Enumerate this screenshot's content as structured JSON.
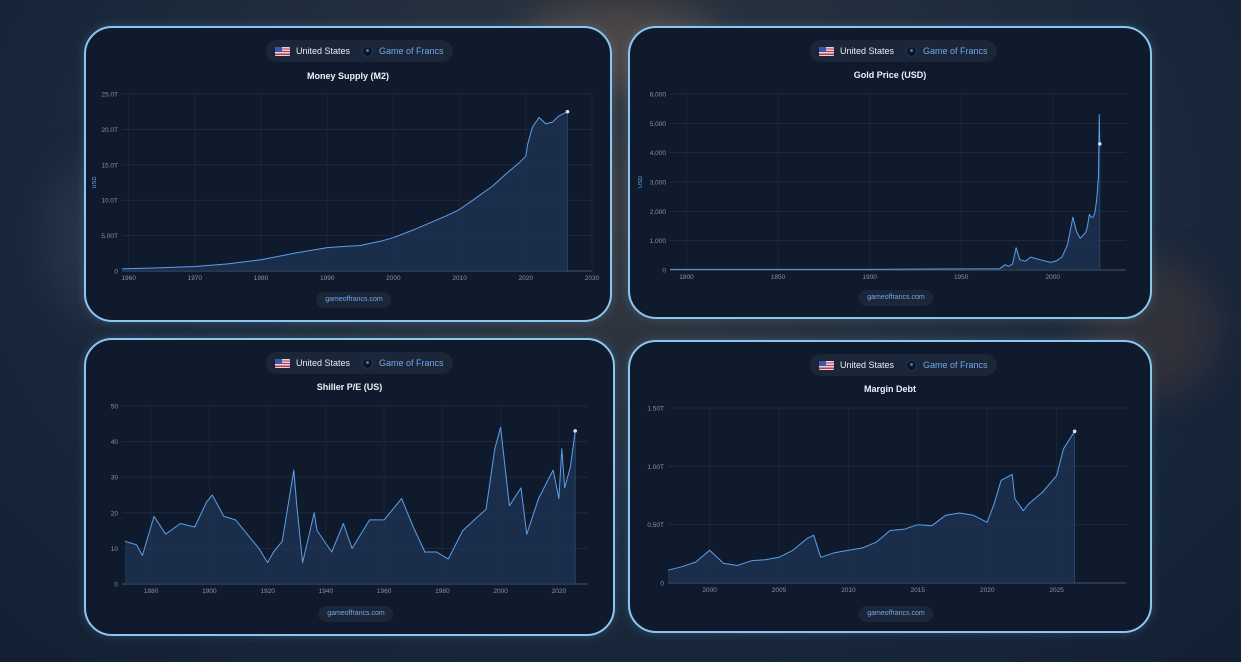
{
  "header": {
    "country_label": "United States",
    "brand_label": "Game of Francs",
    "flag_icon": "us-flag-icon",
    "brand_icon": "game-of-francs-logo-icon"
  },
  "footer_text": "gameoffrancs.com",
  "colors": {
    "accent": "#6fa9ee",
    "card_border": "#8cc6ee",
    "card_bg": "#101a2d",
    "line": "#5b9fe8",
    "area": "#1e3556"
  },
  "chart_data": [
    {
      "type": "area",
      "title": "Money Supply (M2)",
      "ylabel": "USD",
      "xlim": [
        1959,
        2030
      ],
      "ylim": [
        0,
        25
      ],
      "x_ticks": [
        1960,
        1970,
        1980,
        1990,
        2000,
        2010,
        2020,
        2030
      ],
      "y_ticks": [
        0,
        5,
        10,
        15,
        20,
        25
      ],
      "y_tick_labels": [
        "0",
        "5.00T",
        "10.0T",
        "15.0T",
        "20.0T",
        "25.0T"
      ],
      "series": [
        {
          "x": [
            1959,
            1965,
            1970,
            1975,
            1980,
            1985,
            1990,
            1993,
            1995,
            1998,
            2000,
            2003,
            2005,
            2008,
            2010,
            2012,
            2015,
            2017,
            2019,
            2020,
            2020.3,
            2021,
            2022,
            2023,
            2024,
            2025,
            2026.3
          ],
          "values": [
            0.29,
            0.46,
            0.63,
            1.0,
            1.6,
            2.5,
            3.3,
            3.5,
            3.6,
            4.2,
            4.7,
            5.8,
            6.6,
            7.8,
            8.7,
            10.0,
            12.0,
            13.7,
            15.3,
            16.2,
            18.0,
            20.3,
            21.7,
            20.8,
            21.0,
            21.9,
            22.5
          ]
        }
      ]
    },
    {
      "type": "line",
      "title": "Gold Price (USD)",
      "ylabel": "USD",
      "xlim": [
        1791,
        2040
      ],
      "ylim": [
        0,
        6000
      ],
      "x_ticks": [
        1800,
        1850,
        1900,
        1950,
        2000
      ],
      "y_ticks": [
        0,
        1000,
        2000,
        3000,
        4000,
        5000,
        6000
      ],
      "y_tick_labels": [
        "0",
        "1,000",
        "2,000",
        "3,000",
        "4,000",
        "5,000",
        "6,000"
      ],
      "series": [
        {
          "x": [
            1791,
            1834,
            1900,
            1934,
            1968,
            1971,
            1974,
            1976,
            1978,
            1980,
            1982,
            1985,
            1988,
            1993,
            1999,
            2002,
            2005,
            2008,
            2011,
            2013,
            2015,
            2018,
            2019,
            2020,
            2021,
            2022,
            2023,
            2024,
            2025,
            2025.4,
            2025.7
          ],
          "values": [
            19,
            21,
            21,
            35,
            39,
            41,
            180,
            125,
            200,
            760,
            350,
            300,
            440,
            350,
            260,
            310,
            440,
            850,
            1800,
            1300,
            1080,
            1280,
            1500,
            1900,
            1800,
            1800,
            1950,
            2400,
            3200,
            5300,
            4300
          ]
        }
      ]
    },
    {
      "type": "line",
      "title": "Shiller P/E (US)",
      "xlim": [
        1870,
        2030
      ],
      "ylim": [
        0,
        50
      ],
      "x_ticks": [
        1880,
        1900,
        1920,
        1940,
        1960,
        1980,
        2000,
        2020
      ],
      "y_ticks": [
        0,
        10,
        20,
        30,
        40,
        50
      ],
      "series": [
        {
          "x": [
            1871,
            1875,
            1877,
            1881,
            1885,
            1890,
            1895,
            1899,
            1901,
            1905,
            1909,
            1913,
            1917,
            1920,
            1922,
            1925,
            1929,
            1930,
            1932,
            1936,
            1937,
            1942,
            1946,
            1949,
            1955,
            1960,
            1966,
            1970,
            1974,
            1978,
            1982,
            1987,
            1991,
            1995,
            1998,
            2000,
            2003,
            2007,
            2009,
            2013,
            2018,
            2020,
            2021,
            2022,
            2024,
            2025.6
          ],
          "values": [
            12,
            11,
            8,
            19,
            14,
            17,
            16,
            23,
            25,
            19,
            18,
            14,
            10,
            6,
            9,
            12,
            32,
            22,
            6,
            20,
            15,
            9,
            17,
            10,
            18,
            18,
            24,
            16,
            9,
            9,
            7,
            15,
            18,
            21,
            38,
            44,
            22,
            27,
            14,
            24,
            32,
            24,
            38,
            27,
            33,
            43
          ]
        }
      ]
    },
    {
      "type": "area",
      "title": "Margin Debt",
      "xlim": [
        1997,
        2030
      ],
      "ylim": [
        0,
        1.5
      ],
      "x_ticks": [
        2000,
        2005,
        2010,
        2015,
        2020,
        2025
      ],
      "y_ticks": [
        0,
        0.5,
        1.0,
        1.5
      ],
      "y_tick_labels": [
        "0",
        "0.50T",
        "1.00T",
        "1.50T"
      ],
      "series": [
        {
          "x": [
            1997,
            1998,
            1999,
            2000,
            2001,
            2002,
            2003,
            2004,
            2005,
            2006,
            2007,
            2007.5,
            2008,
            2009,
            2010,
            2011,
            2012,
            2013,
            2014,
            2015,
            2016,
            2017,
            2018,
            2019,
            2020,
            2020.5,
            2021,
            2021.8,
            2022,
            2022.6,
            2023,
            2024,
            2025,
            2025.5,
            2026.3
          ],
          "values": [
            0.11,
            0.14,
            0.18,
            0.28,
            0.17,
            0.15,
            0.19,
            0.2,
            0.22,
            0.28,
            0.38,
            0.41,
            0.22,
            0.26,
            0.28,
            0.3,
            0.35,
            0.45,
            0.46,
            0.5,
            0.49,
            0.58,
            0.6,
            0.58,
            0.52,
            0.68,
            0.88,
            0.93,
            0.72,
            0.62,
            0.68,
            0.78,
            0.92,
            1.15,
            1.3
          ]
        }
      ]
    }
  ]
}
